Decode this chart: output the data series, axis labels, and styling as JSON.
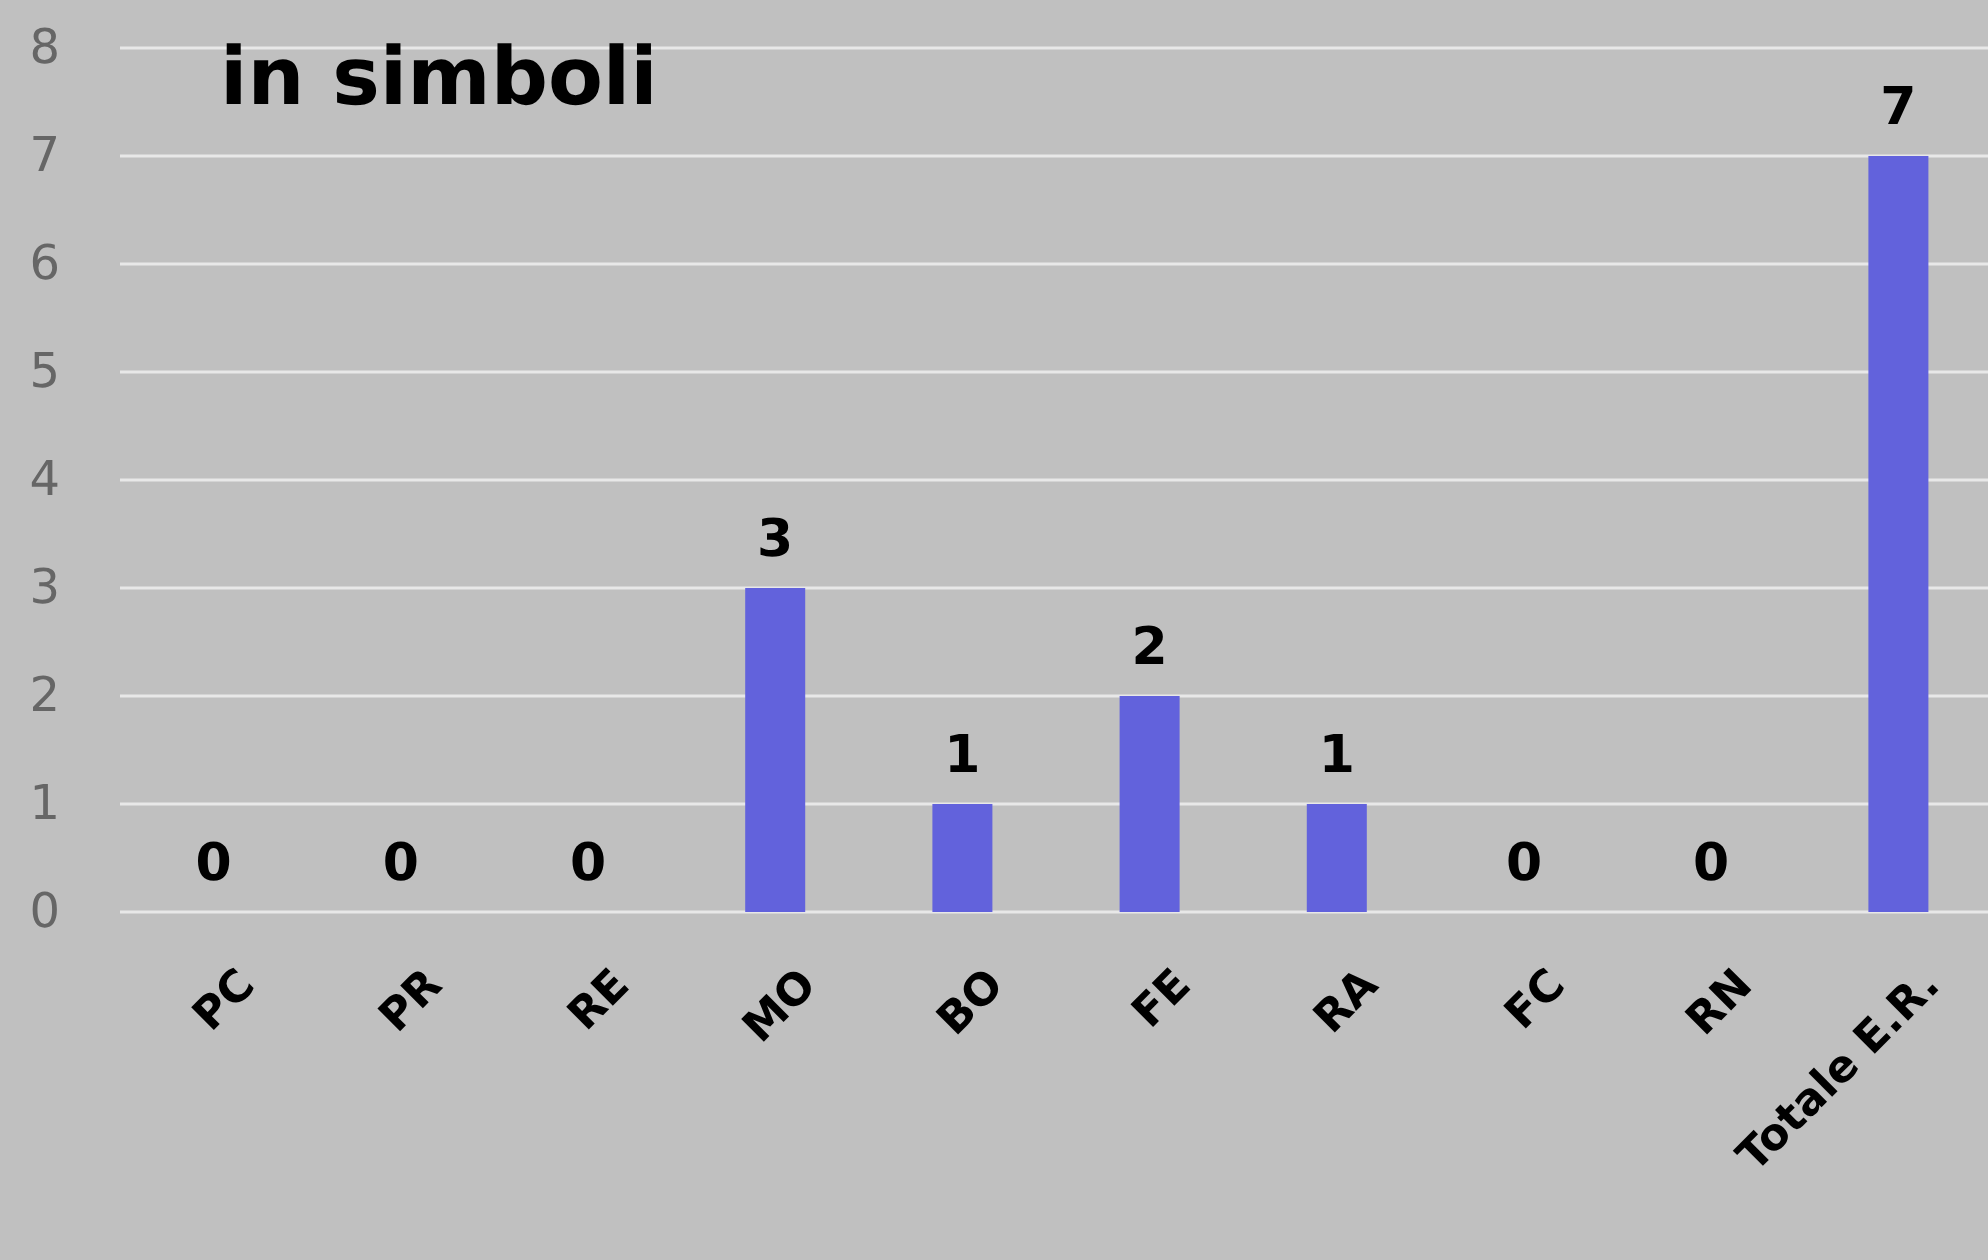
{
  "chart_data": {
    "type": "bar",
    "title": "in simboli",
    "categories": [
      "PC",
      "PR",
      "RE",
      "MO",
      "BO",
      "FE",
      "RA",
      "FC",
      "RN",
      "Totale E.R."
    ],
    "values": [
      0,
      0,
      0,
      3,
      1,
      2,
      1,
      0,
      0,
      7
    ],
    "color": "#6262dc",
    "ylim": [
      0,
      8
    ],
    "yticks": [
      0,
      1,
      2,
      3,
      4,
      5,
      6,
      7,
      8
    ],
    "grid": "y",
    "data_labels": true
  }
}
